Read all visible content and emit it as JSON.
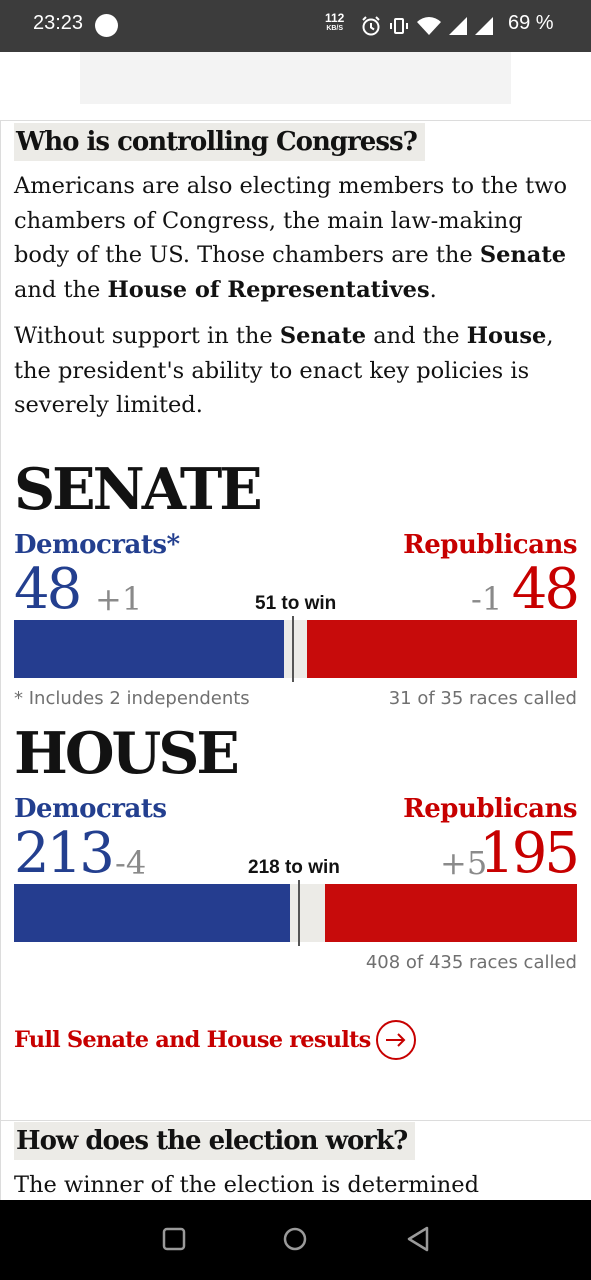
{
  "status_bar": {
    "time": "23:23",
    "net_speed_value": "112",
    "net_speed_unit": "KB/S",
    "battery": "69 %"
  },
  "section1": {
    "title": "Who is controlling Congress?",
    "p1": {
      "t1": "Americans are also electing members to the two chambers of Congress, the main law-making body of the US. Those chambers are the ",
      "b1": "Senate",
      "t2": " and the ",
      "b2": "House of Representatives",
      "t3": "."
    },
    "p2": {
      "t1": "Without support in the ",
      "b1": "Senate",
      "t2": " and the ",
      "b2": "House",
      "t3": ", the president's ability to enact key policies is severely limited."
    }
  },
  "senate": {
    "title": "SENATE",
    "dem_label": "Democrats*",
    "rep_label": "Republicans",
    "dem_seats": "48",
    "dem_change": "+1",
    "rep_seats": "48",
    "rep_change": "-1",
    "to_win": "51 to win",
    "footnote": "* Includes 2 independents",
    "races_called": "31 of 35 races called",
    "dem_share": 0.48,
    "rep_share": 0.48,
    "win_share": 0.51
  },
  "house": {
    "title": "HOUSE",
    "dem_label": "Democrats",
    "rep_label": "Republicans",
    "dem_seats": "213",
    "dem_change": "-4",
    "rep_seats": "195",
    "rep_change": "+5",
    "to_win": "218 to win",
    "races_called": "408 of 435 races called",
    "dem_share": 0.4897,
    "rep_share": 0.4483,
    "win_share": 0.5011
  },
  "results_link": "Full Senate and House results",
  "section2": {
    "title": "How does the election work?",
    "p1": "The winner of the election is determined"
  },
  "colors": {
    "democrat": "#253d8f",
    "republican": "#c70b0b",
    "neutral": "#ecebe7"
  }
}
